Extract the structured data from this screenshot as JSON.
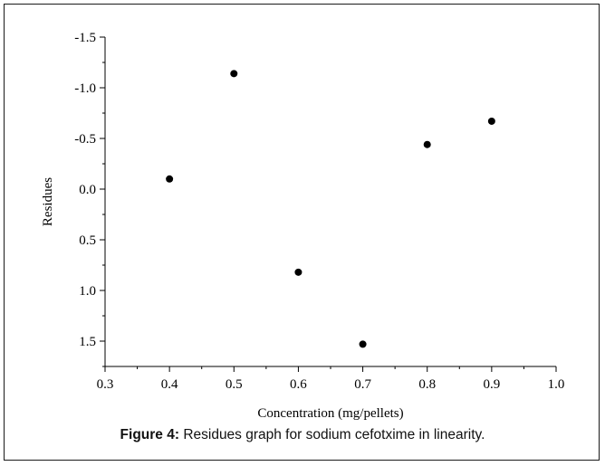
{
  "chart_data": {
    "type": "scatter",
    "xlabel": "Concentration (mg/pellets)",
    "ylabel": "Residues",
    "xlim": [
      0.3,
      1.0
    ],
    "ylim": [
      1.75,
      -1.5
    ],
    "y_axis_inverted": true,
    "grid": false,
    "x_ticks": [
      0.3,
      0.4,
      0.5,
      0.6,
      0.7,
      0.8,
      0.9,
      1.0
    ],
    "x_tick_labels": [
      "0.3",
      "0.4",
      "0.5",
      "0.6",
      "0.7",
      "0.8",
      "0.9",
      "1.0"
    ],
    "y_ticks": [
      -1.5,
      -1.0,
      -0.5,
      0.0,
      0.5,
      1.0,
      1.5
    ],
    "y_tick_labels": [
      "-1.5",
      "-1.0",
      "-0.5",
      "0.0",
      "0.5",
      "1.0",
      "1.5"
    ],
    "series": [
      {
        "points": [
          {
            "x": 0.4,
            "y": -0.1
          },
          {
            "x": 0.5,
            "y": -1.14
          },
          {
            "x": 0.6,
            "y": 0.82
          },
          {
            "x": 0.7,
            "y": 1.53
          },
          {
            "x": 0.8,
            "y": -0.44
          },
          {
            "x": 0.9,
            "y": -0.67
          }
        ],
        "color": "#000000"
      }
    ]
  },
  "caption": {
    "label": "Figure 4:",
    "text": "Residues graph for sodium cefotxime in linearity."
  }
}
